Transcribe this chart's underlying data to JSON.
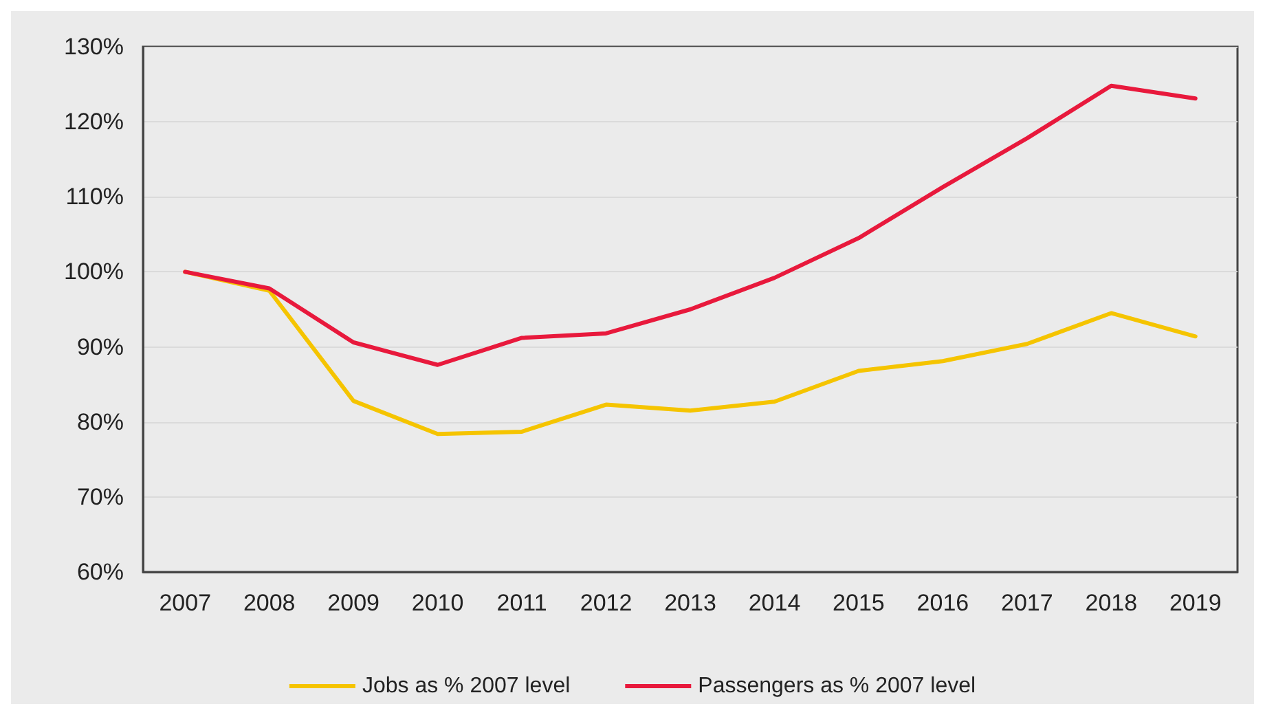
{
  "chart_data": {
    "type": "line",
    "categories": [
      "2007",
      "2008",
      "2009",
      "2010",
      "2011",
      "2012",
      "2013",
      "2014",
      "2015",
      "2016",
      "2017",
      "2018",
      "2019"
    ],
    "series": [
      {
        "name": "Jobs as % 2007 level",
        "color": "#f5c400",
        "values": [
          100,
          97.5,
          82.8,
          78.4,
          78.7,
          82.3,
          81.5,
          82.7,
          86.8,
          88.1,
          90.4,
          94.5,
          91.4
        ]
      },
      {
        "name": "Passengers as % 2007 level",
        "color": "#e8193c",
        "values": [
          100,
          97.8,
          90.6,
          87.6,
          91.2,
          91.8,
          95,
          99.2,
          104.5,
          111.3,
          117.8,
          124.8,
          123.1
        ]
      }
    ],
    "ylim": [
      60,
      130
    ],
    "yticks": [
      {
        "value": 60,
        "label": "60%"
      },
      {
        "value": 70,
        "label": "70%"
      },
      {
        "value": 80,
        "label": "80%"
      },
      {
        "value": 90,
        "label": "90%"
      },
      {
        "value": 100,
        "label": "100%"
      },
      {
        "value": 110,
        "label": "110%"
      },
      {
        "value": 120,
        "label": "120%"
      },
      {
        "value": 130,
        "label": "130%"
      }
    ],
    "grid": "y",
    "legend": "bottom",
    "marker": "none",
    "line_style": "solid"
  }
}
